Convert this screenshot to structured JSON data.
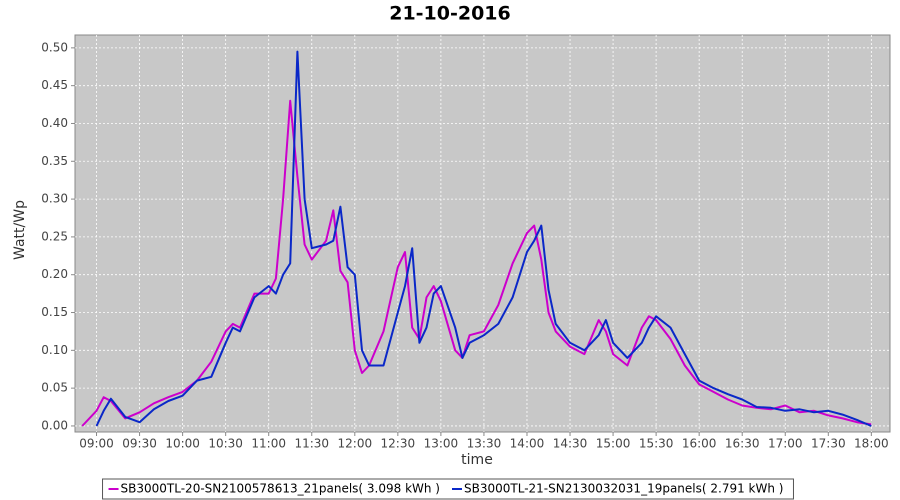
{
  "chart_data": {
    "type": "line",
    "title": "21-10-2016",
    "x_label": "time",
    "y_label": "Watt/Wp",
    "x": [
      "08:50",
      "09:00",
      "09:05",
      "09:10",
      "09:20",
      "09:30",
      "09:40",
      "09:50",
      "10:00",
      "10:10",
      "10:20",
      "10:30",
      "10:35",
      "10:40",
      "10:50",
      "11:00",
      "11:05",
      "11:10",
      "11:15",
      "11:20",
      "11:25",
      "11:30",
      "11:40",
      "11:45",
      "11:50",
      "11:55",
      "12:00",
      "12:05",
      "12:10",
      "12:20",
      "12:30",
      "12:35",
      "12:40",
      "12:45",
      "12:50",
      "12:55",
      "13:00",
      "13:10",
      "13:15",
      "13:20",
      "13:30",
      "13:40",
      "13:50",
      "14:00",
      "14:05",
      "14:10",
      "14:15",
      "14:20",
      "14:30",
      "14:40",
      "14:50",
      "14:55",
      "15:00",
      "15:10",
      "15:20",
      "15:25",
      "15:30",
      "15:40",
      "15:50",
      "16:00",
      "16:10",
      "16:20",
      "16:30",
      "16:40",
      "16:50",
      "17:00",
      "17:10",
      "17:20",
      "17:30",
      "17:40",
      "17:50",
      "18:00"
    ],
    "series": [
      {
        "name": "SB3000TL-20-SN2100578613_21panels( 3.098 kWh )",
        "color": "#cc00cc",
        "values": [
          0.0,
          0.02,
          0.038,
          0.033,
          0.01,
          0.018,
          0.03,
          0.038,
          0.045,
          0.06,
          0.085,
          0.125,
          0.135,
          0.13,
          0.175,
          0.175,
          0.195,
          0.3,
          0.43,
          0.33,
          0.24,
          0.22,
          0.245,
          0.285,
          0.205,
          0.19,
          0.1,
          0.07,
          0.08,
          0.125,
          0.21,
          0.23,
          0.13,
          0.115,
          0.17,
          0.185,
          0.165,
          0.1,
          0.09,
          0.12,
          0.125,
          0.16,
          0.215,
          0.255,
          0.265,
          0.22,
          0.15,
          0.125,
          0.105,
          0.095,
          0.14,
          0.125,
          0.095,
          0.08,
          0.13,
          0.145,
          0.14,
          0.115,
          0.08,
          0.055,
          0.045,
          0.035,
          0.027,
          0.024,
          0.022,
          0.027,
          0.018,
          0.02,
          0.014,
          0.01,
          0.005,
          0.002
        ]
      },
      {
        "name": "SB3000TL-21-SN2130032031_19panels( 2.791 kWh )",
        "color": "#0a28c8",
        "values": [
          null,
          0.0,
          0.02,
          0.036,
          0.012,
          0.005,
          0.022,
          0.033,
          0.04,
          0.06,
          0.065,
          0.11,
          0.13,
          0.125,
          0.17,
          0.185,
          0.175,
          0.2,
          0.215,
          0.495,
          0.3,
          0.235,
          0.24,
          0.245,
          0.29,
          0.21,
          0.2,
          0.1,
          0.08,
          0.08,
          0.15,
          0.185,
          0.235,
          0.11,
          0.13,
          0.175,
          0.185,
          0.13,
          0.09,
          0.11,
          0.12,
          0.135,
          0.17,
          0.23,
          0.245,
          0.265,
          0.18,
          0.135,
          0.11,
          0.1,
          0.12,
          0.14,
          0.11,
          0.09,
          0.11,
          0.13,
          0.145,
          0.13,
          0.095,
          0.06,
          0.05,
          0.042,
          0.035,
          0.025,
          0.024,
          0.02,
          0.022,
          0.018,
          0.02,
          0.015,
          0.008,
          0.0
        ]
      }
    ],
    "xlim": [
      "08:45",
      "18:13"
    ],
    "xticks": [
      "09:00",
      "09:30",
      "10:00",
      "10:30",
      "11:00",
      "11:30",
      "12:00",
      "12:30",
      "13:00",
      "13:30",
      "14:00",
      "14:30",
      "15:00",
      "15:30",
      "16:00",
      "16:30",
      "17:00",
      "17:30",
      "18:00"
    ],
    "ylim": [
      -0.008,
      0.517
    ],
    "yticks": [
      {
        "value": 0,
        "label": "0.00"
      },
      {
        "value": 0.05,
        "label": "0.05"
      },
      {
        "value": 0.1,
        "label": "0.10"
      },
      {
        "value": 0.15,
        "label": "0.15"
      },
      {
        "value": 0.2,
        "label": "0.20"
      },
      {
        "value": 0.25,
        "label": "0.25"
      },
      {
        "value": 0.3,
        "label": "0.30"
      },
      {
        "value": 0.35,
        "label": "0.35"
      },
      {
        "value": 0.4,
        "label": "0.40"
      },
      {
        "value": 0.45,
        "label": "0.45"
      },
      {
        "value": 0.5,
        "label": "0.50"
      }
    ],
    "grid": true,
    "background": "#c8c8c8",
    "legend_position": "bottom"
  }
}
